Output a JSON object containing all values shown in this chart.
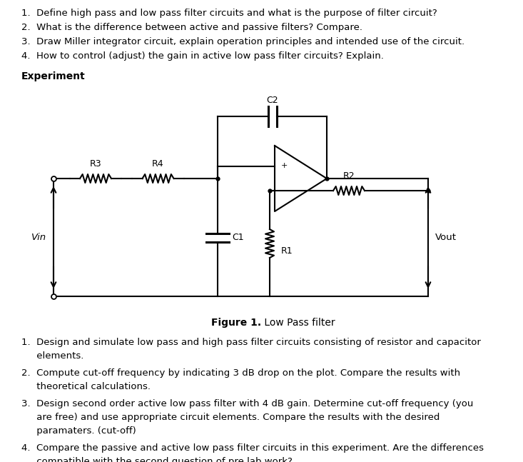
{
  "bg_color": "#ffffff",
  "text_color": "#000000",
  "pre_lab_items": [
    "1.  Define high pass and low pass filter circuits and what is the purpose of filter circuit?",
    "2.  What is the difference between active and passive filters? Compare.",
    "3.  Draw Miller integrator circuit, explain operation principles and intended use of the circuit.",
    "4.  How to control (adjust) the gain in active low pass filter circuits? Explain."
  ],
  "experiment_label": "Experiment",
  "figure_caption_bold": "Figure 1.",
  "figure_caption_normal": " Low Pass filter",
  "post_lab_items": [
    [
      "1.  Design and simulate low pass and high pass filter circuits consisting of resistor and capacitor",
      "     elements."
    ],
    [
      "2.  Compute cut-off frequency by indicating 3 dB drop on the plot. Compare the results with",
      "     theoretical calculations."
    ],
    [
      "3.  Design second order active low pass filter with 4 dB gain. Determine cut-off frequency (you",
      "     are free) and use appropriate circuit elements. Compare the results with the desired",
      "     paramaters. (cut-off)"
    ],
    [
      "4.  Compare the passive and active low pass filter circuits in this experiment. Are the differences",
      "     compatible with the second question of pre lab work?"
    ]
  ]
}
